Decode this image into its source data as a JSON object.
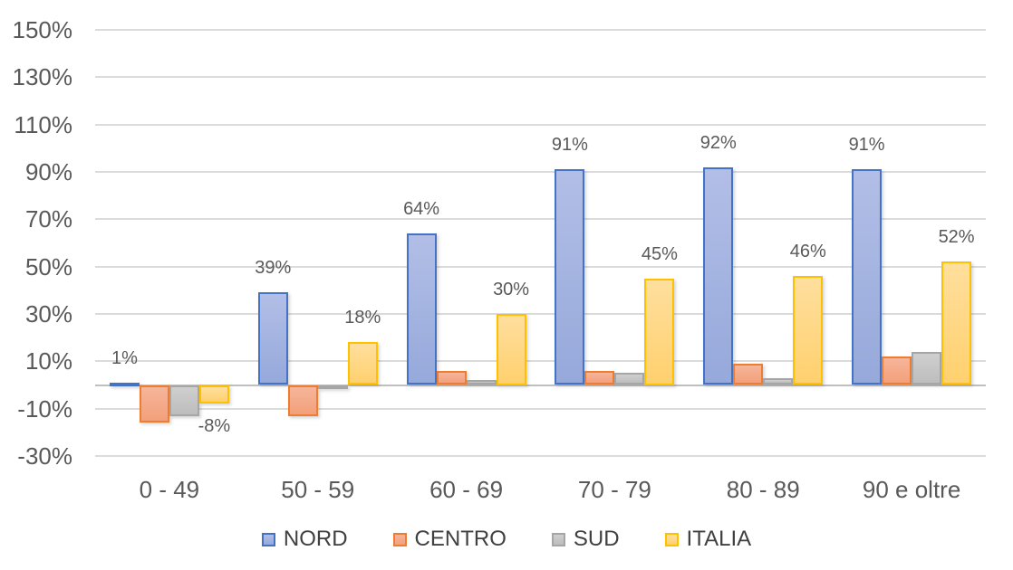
{
  "chart_data": {
    "type": "bar",
    "title": "",
    "categories": [
      "0 - 49",
      "50 - 59",
      "60 - 69",
      "70 - 79",
      "80 - 89",
      "90 e oltre"
    ],
    "series": [
      {
        "name": "NORD",
        "fill_top": "#B2BEE6",
        "fill_bottom": "#96A9DB",
        "border": "#4472C4",
        "values": [
          1,
          39,
          64,
          91,
          92,
          91
        ],
        "data_labels": [
          "1%",
          "39%",
          "64%",
          "91%",
          "92%",
          "91%"
        ]
      },
      {
        "name": "CENTRO",
        "fill_top": "#F6B59A",
        "fill_bottom": "#F3A07A",
        "border": "#ED7D31",
        "values": [
          -16,
          -13,
          6,
          6,
          9,
          12
        ],
        "data_labels": [
          null,
          null,
          null,
          null,
          null,
          null
        ]
      },
      {
        "name": "SUD",
        "fill_top": "#CFCFCF",
        "fill_bottom": "#BDBDBD",
        "border": "#A6A6A6",
        "values": [
          -13,
          -1,
          2,
          5,
          3,
          14
        ],
        "data_labels": [
          null,
          null,
          null,
          null,
          null,
          null
        ]
      },
      {
        "name": "ITALIA",
        "fill_top": "#FFDF9E",
        "fill_bottom": "#FFD06E",
        "border": "#FFC000",
        "values": [
          -8,
          18,
          30,
          45,
          46,
          52
        ],
        "data_labels": [
          "-8%",
          "18%",
          "30%",
          "45%",
          "46%",
          "52%"
        ]
      }
    ],
    "y_axis": {
      "tick_labels": [
        "150%",
        "130%",
        "110%",
        "90%",
        "70%",
        "50%",
        "30%",
        "10%",
        "-10%",
        "-30%"
      ],
      "tick_values": [
        150,
        130,
        110,
        90,
        70,
        50,
        30,
        10,
        -10,
        -30
      ],
      "min": -30,
      "max": 150,
      "step": 20
    },
    "grid": true,
    "legend_position": "bottom",
    "colors": {
      "gridline": "#DBDBDB",
      "axis_zero_line": "#BFBFBF",
      "axis_text": "#595959",
      "data_label_text": "#595959",
      "legend_text": "#404040"
    }
  }
}
